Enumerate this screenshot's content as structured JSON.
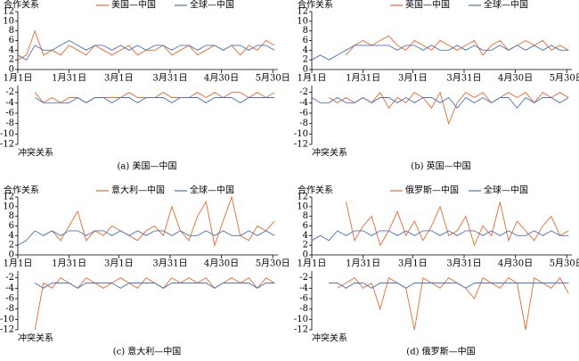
{
  "chart_data": [
    {
      "type": "line",
      "caption": "(a) 美国—中国",
      "x": [
        0,
        5,
        10,
        15,
        20,
        25,
        30,
        35,
        40,
        45,
        50,
        55,
        60,
        65,
        70,
        75,
        80,
        85,
        90,
        95,
        100,
        105,
        110,
        115,
        120,
        125,
        130,
        135,
        140,
        145,
        150
      ],
      "xlim": [
        0,
        152
      ],
      "xticks": [
        {
          "value": 0,
          "label": "1月1日"
        },
        {
          "value": 30,
          "label": "1月31日"
        },
        {
          "value": 59,
          "label": "3月1日"
        },
        {
          "value": 89,
          "label": "3月31日"
        },
        {
          "value": 119,
          "label": "4月30日"
        },
        {
          "value": 149,
          "label": "5月30日"
        }
      ],
      "cooperation": {
        "label": "合作关系",
        "ylim": [
          0,
          12
        ],
        "yticks": [
          0,
          2,
          4,
          6,
          8,
          10,
          12
        ],
        "series": [
          {
            "name": "美国—中国",
            "color": "#e8692a",
            "values": [
              2,
              3,
              8,
              3,
              4,
              3,
              5,
              4,
              3,
              5,
              4,
              3,
              4,
              5,
              3,
              4,
              4,
              5,
              3,
              4,
              5,
              3,
              4,
              5,
              4,
              5,
              3,
              5,
              4,
              6,
              5
            ]
          },
          {
            "name": "全球—中国",
            "color": "#4a72b8",
            "values": [
              3,
              2,
              5,
              4,
              4,
              5,
              6,
              5,
              4,
              5,
              5,
              4,
              5,
              4,
              5,
              4,
              5,
              5,
              4,
              5,
              5,
              4,
              5,
              5,
              4,
              5,
              5,
              4,
              5,
              5,
              4
            ]
          }
        ]
      },
      "conflict": {
        "label": "冲突关系",
        "ylim": [
          -12,
          0
        ],
        "yticks": [
          -2,
          -4,
          -6,
          -8,
          -10,
          -12
        ],
        "series": [
          {
            "color": "#e8692a",
            "values": [
              null,
              null,
              -2,
              -4,
              -3,
              -4,
              -3,
              -3,
              -4,
              -3,
              -3,
              -3,
              -3,
              -2,
              -3,
              -3,
              -3,
              -2,
              -3,
              -3,
              -3,
              -2,
              -3,
              -2,
              -3,
              -2,
              -2,
              -3,
              -2,
              -3,
              -2
            ]
          },
          {
            "color": "#4a72b8",
            "values": [
              null,
              null,
              -3,
              -4,
              -4,
              -4,
              -4,
              -3,
              -4,
              -3,
              -3,
              -4,
              -3,
              -3,
              -4,
              -3,
              -3,
              -3,
              -4,
              -3,
              -3,
              -3,
              -4,
              -3,
              -3,
              -3,
              -4,
              -3,
              -3,
              -3,
              -3
            ]
          }
        ]
      }
    },
    {
      "type": "line",
      "caption": "(b) 英国—中国",
      "x": [
        0,
        5,
        10,
        15,
        20,
        25,
        30,
        35,
        40,
        45,
        50,
        55,
        60,
        65,
        70,
        75,
        80,
        85,
        90,
        95,
        100,
        105,
        110,
        115,
        120,
        125,
        130,
        135,
        140,
        145,
        150
      ],
      "xlim": [
        0,
        152
      ],
      "xticks": [
        {
          "value": 0,
          "label": "1月1日"
        },
        {
          "value": 30,
          "label": "1月31日"
        },
        {
          "value": 59,
          "label": "3月1日"
        },
        {
          "value": 89,
          "label": "3月31日"
        },
        {
          "value": 119,
          "label": "4月30日"
        },
        {
          "value": 149,
          "label": "5月30日"
        }
      ],
      "cooperation": {
        "label": "合作关系",
        "ylim": [
          0,
          12
        ],
        "yticks": [
          0,
          2,
          4,
          6,
          8,
          10,
          12
        ],
        "series": [
          {
            "name": "英国—中国",
            "color": "#e8692a",
            "values": [
              null,
              null,
              null,
              null,
              3,
              5,
              6,
              5,
              6,
              7,
              5,
              4,
              6,
              5,
              4,
              6,
              5,
              4,
              5,
              6,
              3,
              5,
              6,
              4,
              5,
              6,
              5,
              6,
              4,
              5,
              4
            ]
          },
          {
            "name": "全球—中国",
            "color": "#4a72b8",
            "values": [
              2,
              3,
              2,
              3,
              4,
              5,
              5,
              5,
              5,
              5,
              4,
              5,
              5,
              4,
              5,
              4,
              4,
              5,
              4,
              5,
              4,
              4,
              5,
              4,
              5,
              4,
              5,
              4,
              5,
              4,
              4
            ]
          }
        ]
      },
      "conflict": {
        "label": "冲突关系",
        "ylim": [
          -12,
          0
        ],
        "yticks": [
          -2,
          -4,
          -6,
          -8,
          -10,
          -12
        ],
        "series": [
          {
            "color": "#e8692a",
            "values": [
              null,
              null,
              -3,
              -4,
              -3,
              -4,
              -3,
              -4,
              -2,
              -5,
              -3,
              -4,
              -2,
              -3,
              -5,
              -2,
              -8,
              -4,
              -2,
              -3,
              -2,
              -4,
              -3,
              -2,
              -3,
              -2,
              -4,
              -2,
              -3,
              -2,
              -3
            ]
          },
          {
            "color": "#4a72b8",
            "values": [
              -3,
              -4,
              -4,
              -3,
              -4,
              -4,
              -3,
              -4,
              -3,
              -3,
              -4,
              -3,
              -4,
              -3,
              -3,
              -4,
              -3,
              -5,
              -3,
              -4,
              -3,
              -4,
              -3,
              -3,
              -5,
              -3,
              -4,
              -3,
              -3,
              -4,
              -3
            ]
          }
        ]
      }
    },
    {
      "type": "line",
      "caption": "(c) 意大利—中国",
      "x": [
        0,
        5,
        10,
        15,
        20,
        25,
        30,
        35,
        40,
        45,
        50,
        55,
        60,
        65,
        70,
        75,
        80,
        85,
        90,
        95,
        100,
        105,
        110,
        115,
        120,
        125,
        130,
        135,
        140,
        145,
        150
      ],
      "xlim": [
        0,
        152
      ],
      "xticks": [
        {
          "value": 0,
          "label": "1月1日"
        },
        {
          "value": 30,
          "label": "1月31日"
        },
        {
          "value": 59,
          "label": "3月1日"
        },
        {
          "value": 89,
          "label": "3月31日"
        },
        {
          "value": 119,
          "label": "4月30日"
        },
        {
          "value": 149,
          "label": "5月30日"
        }
      ],
      "cooperation": {
        "label": "合作关系",
        "ylim": [
          0,
          12
        ],
        "yticks": [
          0,
          2,
          4,
          6,
          8,
          10,
          12
        ],
        "series": [
          {
            "name": "意大利—中国",
            "color": "#e8692a",
            "values": [
              null,
              null,
              null,
              4,
              5,
              3,
              6,
              9,
              3,
              5,
              4,
              6,
              5,
              4,
              3,
              5,
              6,
              4,
              10,
              5,
              3,
              8,
              11,
              2,
              7,
              12,
              4,
              3,
              6,
              5,
              7
            ]
          },
          {
            "name": "全球—中国",
            "color": "#4a72b8",
            "values": [
              2,
              3,
              5,
              4,
              5,
              4,
              5,
              5,
              4,
              5,
              5,
              4,
              5,
              4,
              5,
              4,
              5,
              5,
              4,
              5,
              4,
              4,
              5,
              4,
              5,
              4,
              4,
              5,
              4,
              5,
              4
            ]
          }
        ]
      },
      "conflict": {
        "label": "冲突关系",
        "ylim": [
          -12,
          0
        ],
        "yticks": [
          -2,
          -4,
          -6,
          -8,
          -10,
          -12
        ],
        "series": [
          {
            "color": "#e8692a",
            "values": [
              null,
              null,
              -12,
              -3,
              -4,
              -2,
              -3,
              -4,
              -2,
              -3,
              -4,
              -3,
              -2,
              -3,
              -4,
              -2,
              -3,
              -4,
              -2,
              -3,
              -2,
              -3,
              -2,
              -4,
              -3,
              -2,
              -3,
              -2,
              -4,
              -2,
              -3
            ]
          },
          {
            "color": "#4a72b8",
            "values": [
              null,
              null,
              -3,
              -4,
              -3,
              -3,
              -3,
              -4,
              -3,
              -3,
              -3,
              -3,
              -4,
              -3,
              -3,
              -3,
              -3,
              -4,
              -3,
              -3,
              -3,
              -3,
              -3,
              -4,
              -3,
              -3,
              -3,
              -3,
              -4,
              -3,
              -3
            ]
          }
        ]
      }
    },
    {
      "type": "line",
      "caption": "(d) 俄罗斯—中国",
      "x": [
        0,
        5,
        10,
        15,
        20,
        25,
        30,
        35,
        40,
        45,
        50,
        55,
        60,
        65,
        70,
        75,
        80,
        85,
        90,
        95,
        100,
        105,
        110,
        115,
        120,
        125,
        130,
        135,
        140,
        145,
        150
      ],
      "xlim": [
        0,
        152
      ],
      "xticks": [
        {
          "value": 0,
          "label": "1月1日"
        },
        {
          "value": 30,
          "label": "1月31日"
        },
        {
          "value": 59,
          "label": "3月1日"
        },
        {
          "value": 89,
          "label": "3月31日"
        },
        {
          "value": 119,
          "label": "4月30日"
        },
        {
          "value": 149,
          "label": "5月30日"
        }
      ],
      "cooperation": {
        "label": "合作关系",
        "ylim": [
          0,
          12
        ],
        "yticks": [
          0,
          2,
          4,
          6,
          8,
          10,
          12
        ],
        "series": [
          {
            "name": "俄罗斯—中国",
            "color": "#e8692a",
            "values": [
              null,
              null,
              null,
              null,
              11,
              3,
              6,
              8,
              2,
              5,
              9,
              4,
              7,
              3,
              6,
              10,
              4,
              5,
              8,
              2,
              6,
              4,
              11,
              3,
              7,
              5,
              3,
              6,
              8,
              4,
              5
            ]
          },
          {
            "name": "全球—中国",
            "color": "#4a72b8",
            "values": [
              3,
              4,
              3,
              5,
              4,
              5,
              5,
              4,
              5,
              5,
              4,
              5,
              4,
              5,
              5,
              4,
              5,
              4,
              5,
              5,
              4,
              5,
              4,
              5,
              4,
              4,
              5,
              4,
              5,
              4,
              4
            ]
          }
        ]
      },
      "conflict": {
        "label": "冲突关系",
        "ylim": [
          -12,
          0
        ],
        "yticks": [
          -2,
          -4,
          -6,
          -8,
          -10,
          -12
        ],
        "series": [
          {
            "color": "#e8692a",
            "values": [
              null,
              null,
              null,
              -4,
              -3,
              -2,
              -4,
              -3,
              -8,
              -2,
              -3,
              -4,
              -12,
              -2,
              -3,
              -4,
              -2,
              -3,
              -4,
              -6,
              -2,
              -3,
              -4,
              -2,
              -3,
              -12,
              -2,
              -3,
              -4,
              -2,
              -5
            ]
          },
          {
            "color": "#4a72b8",
            "values": [
              null,
              null,
              -3,
              -3,
              -4,
              -3,
              -3,
              -4,
              -3,
              -3,
              -3,
              -4,
              -3,
              -3,
              -3,
              -3,
              -3,
              -3,
              -4,
              -3,
              -3,
              -3,
              -3,
              -3,
              -3,
              -3,
              -3,
              -3,
              -3,
              -3,
              -3
            ]
          }
        ]
      }
    }
  ]
}
